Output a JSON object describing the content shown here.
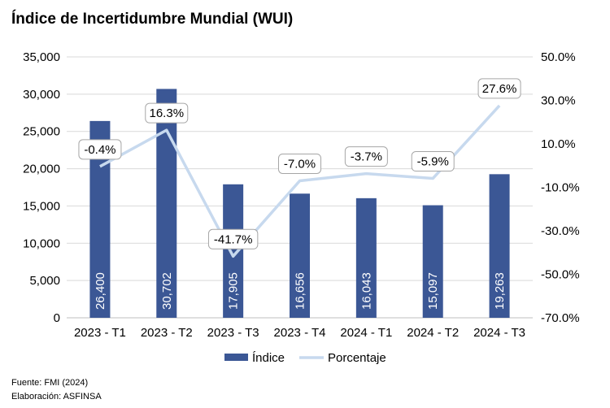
{
  "title": "Índice de Incertidumbre Mundial (WUI)",
  "footer": {
    "source": "Fuente: FMI (2024)",
    "prepared": "Elaboración: ASFINSA"
  },
  "colors": {
    "bar": "#3B5795",
    "line": "#C7D9EE",
    "grid": "#D9D9D9",
    "axis": "#BFBFBF",
    "label_border": "#A6A6A6"
  },
  "chart_data": {
    "type": "bar",
    "categories": [
      "2023 - T1",
      "2023 - T2",
      "2023 - T3",
      "2023 - T4",
      "2024 - T1",
      "2024 - T2",
      "2024 - T3"
    ],
    "series": [
      {
        "name": "Índice",
        "type": "bar",
        "axis": "left",
        "values": [
          26400,
          30702,
          17905,
          16656,
          16043,
          15097,
          19263
        ],
        "labels": [
          "26,400",
          "30,702",
          "17,905",
          "16,656",
          "16,043",
          "15,097",
          "19,263"
        ]
      },
      {
        "name": "Porcentaje",
        "type": "line",
        "axis": "right",
        "values": [
          -0.4,
          16.3,
          -41.7,
          -7.0,
          -3.7,
          -5.9,
          27.6
        ],
        "labels": [
          "-0.4%",
          "16.3%",
          "-41.7%",
          "-7.0%",
          "-3.7%",
          "-5.9%",
          "27.6%"
        ]
      }
    ],
    "y_left": {
      "min": 0,
      "max": 35000,
      "step": 5000,
      "tick_labels": [
        "0",
        "5,000",
        "10,000",
        "15,000",
        "20,000",
        "25,000",
        "30,000",
        "35,000"
      ]
    },
    "y_right": {
      "min": -70,
      "max": 50,
      "step": 20,
      "tick_labels": [
        "-70.0%",
        "-50.0%",
        "-30.0%",
        "-10.0%",
        "10.0%",
        "30.0%",
        "50.0%"
      ]
    },
    "legend": [
      "Índice",
      "Porcentaje"
    ],
    "legend_position": "bottom",
    "grid": true
  }
}
